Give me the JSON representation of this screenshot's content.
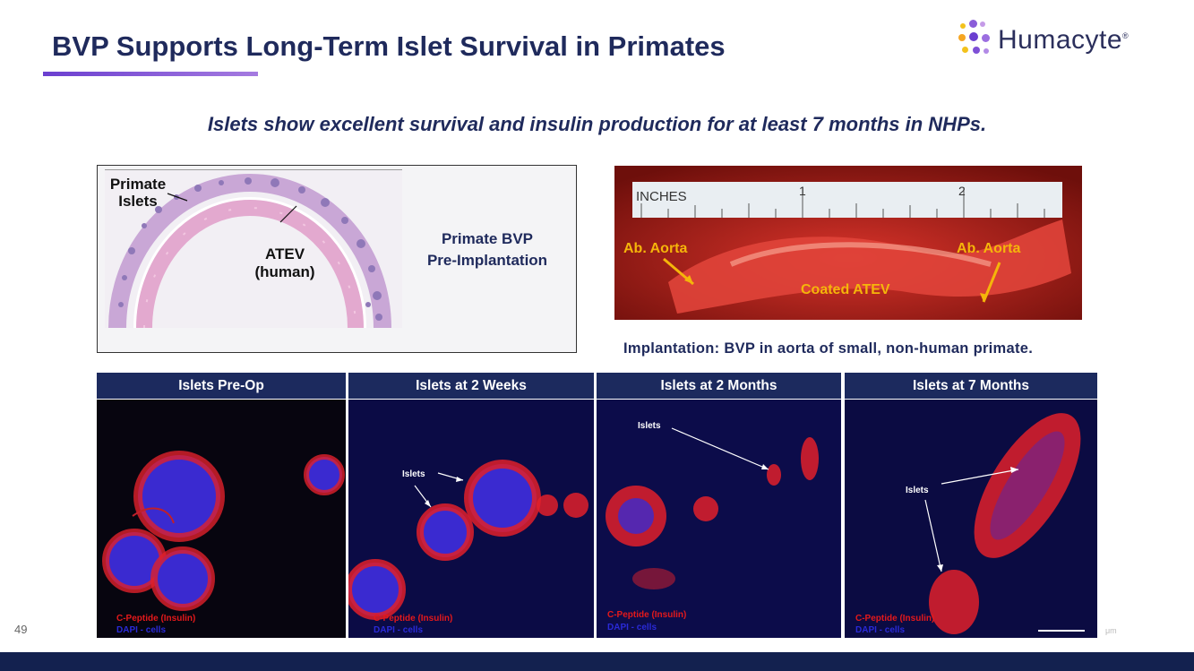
{
  "title": "BVP Supports Long-Term Islet Survival in Primates",
  "logo": {
    "text": "Humacyte",
    "mark": "®",
    "icon": "dot-cluster-logo-icon"
  },
  "subtitle": "Islets show excellent survival and insulin production for at least 7 months in NHPs.",
  "histology": {
    "label_islets": "Primate\nIslets",
    "label_atev_1": "ATEV",
    "label_atev_2": "(human)",
    "bvp_line1": "Primate BVP",
    "bvp_line2": "Pre-Implantation"
  },
  "surgery": {
    "ruler_label": "INCHES",
    "ruler_1": "1",
    "ruler_2": "2",
    "aorta_left": "Ab. Aorta",
    "aorta_right": "Ab. Aorta",
    "coated": "Coated ATEV",
    "caption": "Implantation:  BVP in aorta of small, non-human primate."
  },
  "panels": [
    {
      "header": "Islets Pre-Op",
      "cpep": "C-Peptide (Insulin)",
      "dapi": "DAPI - cells",
      "islet_label": ""
    },
    {
      "header": "Islets at 2 Weeks",
      "cpep": "C-Peptide (Insulin)",
      "dapi": "DAPI - cells",
      "islet_label": "Islets"
    },
    {
      "header": "Islets at 2 Months",
      "cpep": "C-Peptide (Insulin)",
      "dapi": "DAPI - cells",
      "islet_label": "Islets"
    },
    {
      "header": "Islets at 7 Months",
      "cpep": "C-Peptide (Insulin)",
      "dapi": "DAPI - cells",
      "islet_label": "Islets"
    }
  ],
  "scale_unit": "μm",
  "page_number": "49",
  "colors": {
    "navy": "#1c2a5e",
    "accent": "#6b3fd0",
    "label_yellow": "#f5b50a",
    "stain_red": "#e3191b",
    "stain_blue": "#2a2ad8"
  }
}
